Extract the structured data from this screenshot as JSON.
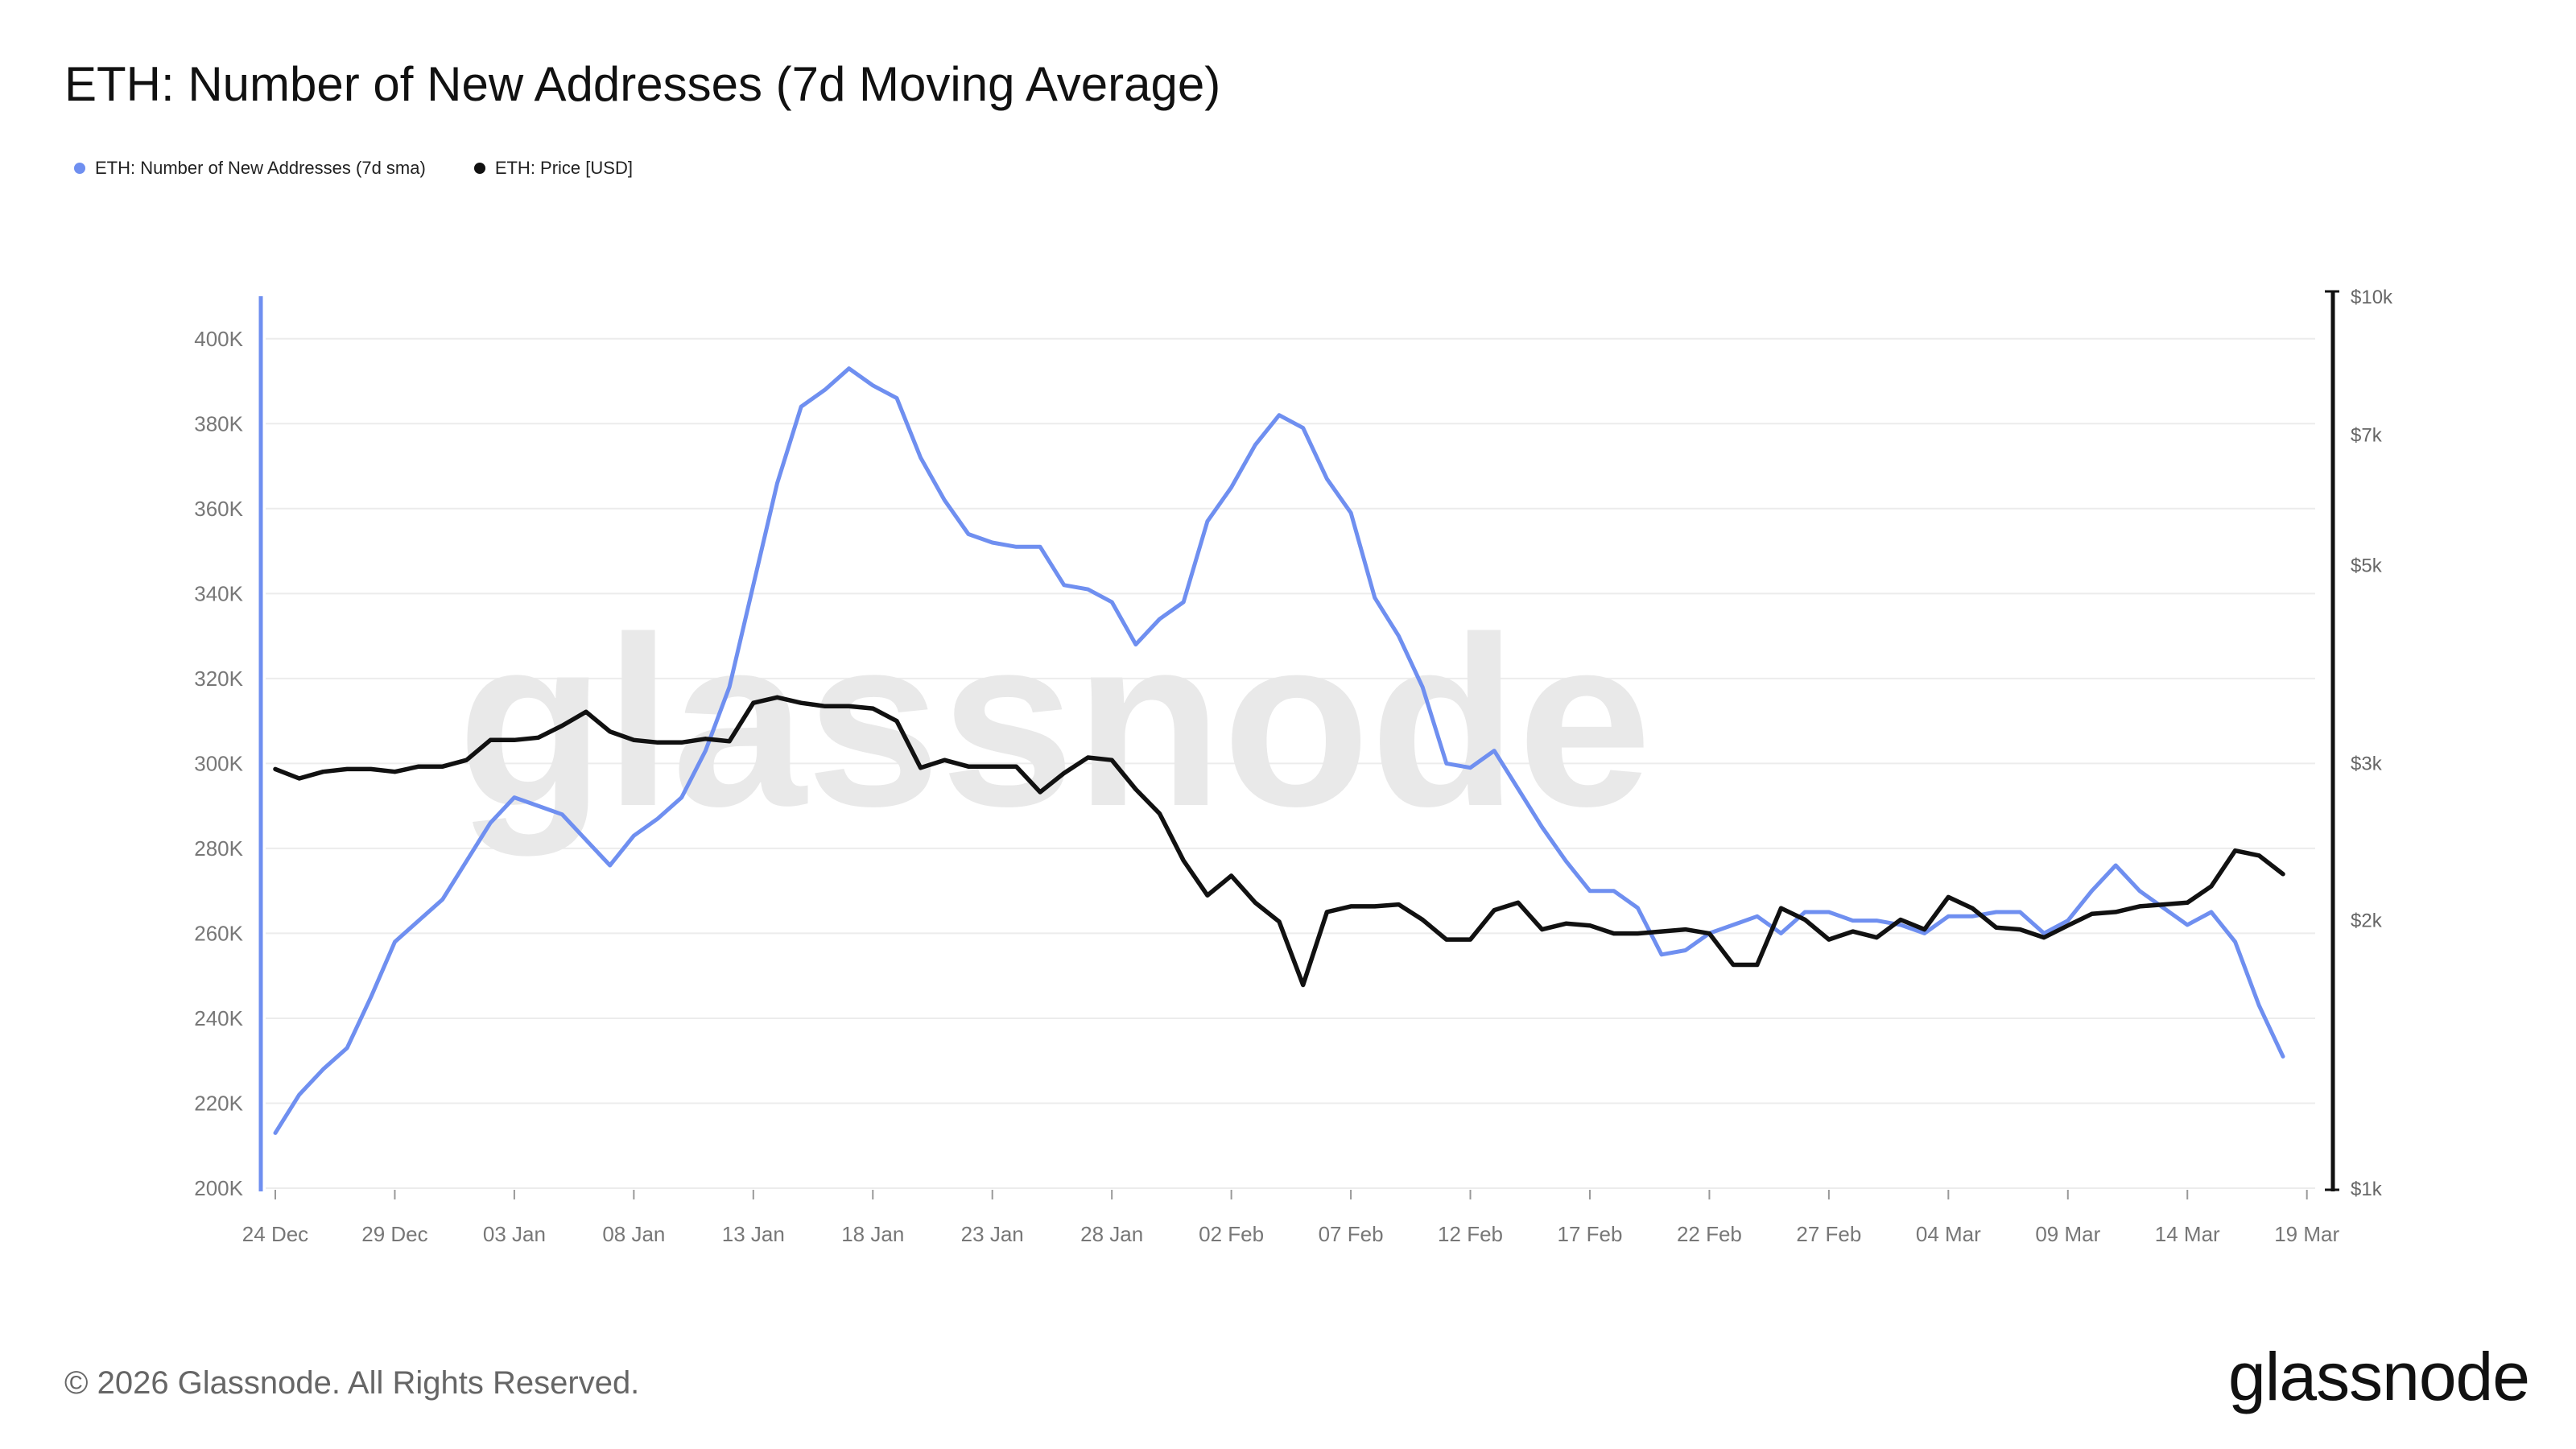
{
  "title": "ETH: Number of New Addresses (7d Moving Average)",
  "legend": [
    {
      "label": "ETH: Number of New Addresses (7d sma)",
      "color": "#6f8ff0"
    },
    {
      "label": "ETH: Price [USD]",
      "color": "#111111"
    }
  ],
  "watermark": "glassnode",
  "footer": {
    "copyright": "© 2026 Glassnode. All Rights Reserved.",
    "logo": "glassnode"
  },
  "chart_data": {
    "type": "line",
    "title": "ETH: Number of New Addresses (7d Moving Average)",
    "x_tick_labels": [
      "24 Dec",
      "29 Dec",
      "03 Jan",
      "08 Jan",
      "13 Jan",
      "18 Jan",
      "23 Jan",
      "28 Jan",
      "02 Feb",
      "07 Feb",
      "12 Feb",
      "17 Feb",
      "22 Feb",
      "27 Feb",
      "04 Mar",
      "09 Mar",
      "14 Mar",
      "19 Mar"
    ],
    "left_axis": {
      "ylim": [
        200000,
        410000
      ],
      "ticks": [
        200000,
        220000,
        240000,
        260000,
        280000,
        300000,
        320000,
        340000,
        360000,
        380000,
        400000
      ],
      "tick_labels": [
        "200K",
        "220K",
        "240K",
        "260K",
        "280K",
        "300K",
        "320K",
        "340K",
        "360K",
        "380K",
        "400K"
      ]
    },
    "right_axis": {
      "scale": "log",
      "ylim": [
        1000,
        10000
      ],
      "ticks": [
        1000,
        2000,
        3000,
        5000,
        7000,
        10000
      ],
      "tick_labels": [
        "$1k",
        "$2k",
        "$3k",
        "$5k",
        "$7k",
        "$10k"
      ]
    },
    "grid": true,
    "x_start": "24 Dec",
    "series": [
      {
        "name": "ETH: Number of New Addresses (7d sma)",
        "axis": "left",
        "color": "#6f8ff0",
        "values": [
          213000,
          222000,
          228000,
          233000,
          245000,
          258000,
          263000,
          268000,
          277000,
          286000,
          292000,
          290000,
          288000,
          282000,
          276000,
          283000,
          287000,
          292000,
          303000,
          318000,
          342000,
          366000,
          384000,
          388000,
          393000,
          389000,
          386000,
          372000,
          362000,
          354000,
          352000,
          351000,
          351000,
          342000,
          341000,
          338000,
          328000,
          334000,
          338000,
          357000,
          365000,
          375000,
          382000,
          379000,
          367000,
          359000,
          339000,
          330000,
          318000,
          300000,
          299000,
          303000,
          294000,
          285000,
          277000,
          270000,
          270000,
          266000,
          255000,
          256000,
          260000,
          262000,
          264000,
          260000,
          265000,
          265000,
          263000,
          263000,
          262000,
          260000,
          264000,
          264000,
          265000,
          265000,
          260000,
          263000,
          270000,
          276000,
          270000,
          266000,
          262000,
          265000,
          258000,
          243000,
          231000
        ]
      },
      {
        "name": "ETH: Price [USD]",
        "axis": "right",
        "color": "#111111",
        "values": [
          2950,
          2880,
          2930,
          2950,
          2950,
          2930,
          2970,
          2970,
          3020,
          3180,
          3180,
          3200,
          3300,
          3420,
          3250,
          3180,
          3160,
          3160,
          3190,
          3170,
          3500,
          3550,
          3500,
          3470,
          3470,
          3450,
          3340,
          2960,
          3020,
          2970,
          2970,
          2970,
          2780,
          2920,
          3040,
          3020,
          2800,
          2630,
          2330,
          2130,
          2240,
          2090,
          1990,
          1690,
          2040,
          2070,
          2070,
          2080,
          2000,
          1900,
          1900,
          2050,
          2090,
          1950,
          1980,
          1970,
          1930,
          1930,
          1940,
          1950,
          1930,
          1780,
          1780,
          2060,
          2000,
          1900,
          1940,
          1910,
          2000,
          1950,
          2120,
          2060,
          1960,
          1950,
          1910,
          1970,
          2030,
          2040,
          2070,
          2080,
          2090,
          2180,
          2390,
          2360,
          2250
        ]
      }
    ]
  }
}
